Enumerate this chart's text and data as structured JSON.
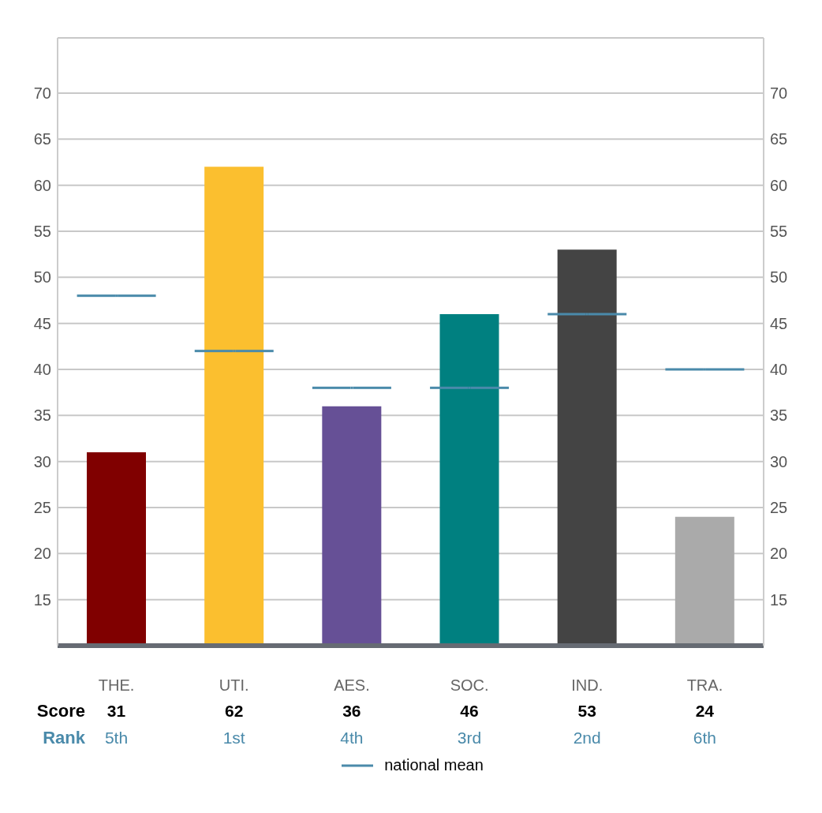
{
  "chart_data": {
    "type": "bar",
    "categories": [
      "THE.",
      "UTI.",
      "AES.",
      "SOC.",
      "IND.",
      "TRA."
    ],
    "values": [
      31,
      62,
      36,
      46,
      53,
      24
    ],
    "colors": [
      "#800000",
      "#fbbf2f",
      "#665096",
      "#008080",
      "#444444",
      "#aaaaaa"
    ],
    "series": [
      {
        "name": "national mean",
        "type": "scatter",
        "color": "#4a8aaa",
        "values": [
          48,
          42,
          38,
          38,
          46,
          40
        ]
      }
    ],
    "ylim": [
      10,
      76
    ],
    "yticks": [
      15,
      20,
      25,
      30,
      35,
      40,
      45,
      50,
      55,
      60,
      65,
      70
    ],
    "y2lim": [
      10,
      76
    ],
    "y2ticks": [
      15,
      20,
      25,
      30,
      35,
      40,
      45,
      50,
      55,
      60,
      65,
      70
    ],
    "grid": "y",
    "legend": "bottom",
    "value_labels": [
      "31",
      "62",
      "36",
      "46",
      "53",
      "24"
    ],
    "annotations": [
      "Score",
      "Rank",
      "5th",
      "1st",
      "4th",
      "3rd",
      "2nd",
      "6th"
    ]
  }
}
